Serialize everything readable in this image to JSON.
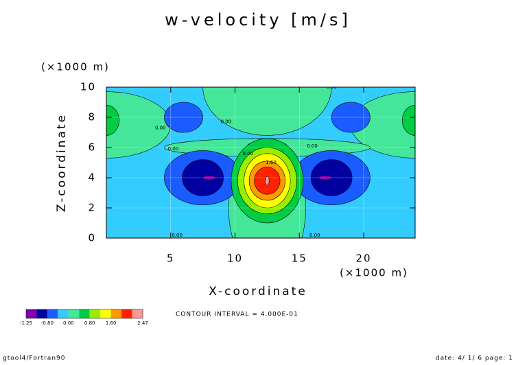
{
  "chart_data": {
    "type": "contour",
    "title": "w-velocity [m/s]",
    "y_unit": "(×1000 m)",
    "x_unit": "(×1000 m)",
    "xlabel": "X-coordinate",
    "ylabel": "Z-coordinate",
    "xlim": [
      0,
      24
    ],
    "ylim": [
      0,
      10
    ],
    "xticks": [
      5,
      10,
      15,
      20
    ],
    "yticks": [
      0,
      2,
      4,
      6,
      8,
      10
    ],
    "grid": true,
    "background_value": -0.2,
    "regions": [
      {
        "x": 12.5,
        "y": 10,
        "rx": 5,
        "ry": 3.2,
        "value": 0.2
      },
      {
        "x": 0,
        "y": 7.5,
        "rx": 5,
        "ry": 2.2,
        "value": 0.2
      },
      {
        "x": 24,
        "y": 7.5,
        "rx": 5,
        "ry": 2.2,
        "value": 0.2
      },
      {
        "x": 12.5,
        "y": 6,
        "rx": 8,
        "ry": 0.6,
        "value": 0.2
      },
      {
        "x": 12.5,
        "y": 2,
        "rx": 3,
        "ry": 4.5,
        "value": 0.2
      },
      {
        "x": 0,
        "y": 7.8,
        "rx": 1,
        "ry": 1,
        "value": 0.6
      },
      {
        "x": 24,
        "y": 7.8,
        "rx": 1,
        "ry": 1,
        "value": 0.6
      },
      {
        "x": 6,
        "y": 8,
        "rx": 1.5,
        "ry": 1,
        "value": -0.6
      },
      {
        "x": 19,
        "y": 8,
        "rx": 1.5,
        "ry": 1,
        "value": -0.6
      },
      {
        "x": 12.5,
        "y": 6.15,
        "rx": 1.5,
        "ry": 0.25,
        "value": -0.6
      },
      {
        "x": 7.5,
        "y": 4,
        "rx": 3,
        "ry": 1.8,
        "value": -0.6
      },
      {
        "x": 7.5,
        "y": 4,
        "rx": 1.6,
        "ry": 1.2,
        "value": -1.0
      },
      {
        "x": 8,
        "y": 4,
        "rx": 0.5,
        "ry": 0.15,
        "value": -1.22
      },
      {
        "x": 17.5,
        "y": 4,
        "rx": 3,
        "ry": 1.8,
        "value": -0.6
      },
      {
        "x": 17.5,
        "y": 4,
        "rx": 1.6,
        "ry": 1.2,
        "value": -1.0
      },
      {
        "x": 17,
        "y": 4,
        "rx": 0.5,
        "ry": 0.15,
        "value": -1.22
      },
      {
        "x": 12.5,
        "y": 3.8,
        "rx": 2.8,
        "ry": 2.8,
        "value": 0.6
      },
      {
        "x": 12.5,
        "y": 3.8,
        "rx": 2.3,
        "ry": 2.2,
        "value": 1.0
      },
      {
        "x": 12.5,
        "y": 3.8,
        "rx": 1.8,
        "ry": 1.8,
        "value": 1.4
      },
      {
        "x": 12.5,
        "y": 3.8,
        "rx": 1.4,
        "ry": 1.3,
        "value": 1.8
      },
      {
        "x": 12.5,
        "y": 3.8,
        "rx": 1.0,
        "ry": 0.9,
        "value": 2.2
      },
      {
        "x": 12.5,
        "y": 3.8,
        "rx": 0.15,
        "ry": 0.3,
        "value": 2.45
      }
    ],
    "contour_labels": [
      {
        "x": 4.2,
        "y": 7.3,
        "value": 0,
        "label": "0.00"
      },
      {
        "x": 9.3,
        "y": 7.7,
        "value": 0,
        "label": "0.00"
      },
      {
        "x": 5.2,
        "y": 5.9,
        "value": 0,
        "label": "0.00"
      },
      {
        "x": 16,
        "y": 6.1,
        "value": 0,
        "label": "0.00"
      },
      {
        "x": 17.5,
        "y": 10,
        "value": 0,
        "label": "0.00"
      },
      {
        "x": 11,
        "y": 5.6,
        "value": 0,
        "label": "0.00"
      },
      {
        "x": 12.8,
        "y": 5,
        "value": 1.6,
        "label": "1.60"
      },
      {
        "x": 5.5,
        "y": 0,
        "value": 0,
        "label": "0.00"
      },
      {
        "x": 16.2,
        "y": 0,
        "value": 0,
        "label": "0.00"
      }
    ],
    "colorbar": {
      "bounds": [
        -1.25,
        -1.2,
        -0.8,
        -0.4,
        0,
        0.4,
        0.8,
        1.2,
        1.6,
        2.0,
        2.4,
        2.47
      ],
      "colors": [
        "#8000b0",
        "#0000a0",
        "#1a5cff",
        "#33ccff",
        "#44e699",
        "#00cc44",
        "#99ee00",
        "#ffff00",
        "#ff9900",
        "#ff2200",
        "#ff9999"
      ],
      "ticks": [
        -1.25,
        {
          "value": -0.8,
          "label": "-0.80"
        },
        {
          "value": 0,
          "label": "0.00"
        },
        {
          "value": 0.8,
          "label": "0.80"
        },
        {
          "value": 1.6,
          "label": "1.60"
        },
        2.47
      ]
    },
    "note": "CONTOUR INTERVAL = 4.000E-01",
    "footer_left": "gtool4/Fortran90",
    "footer_right": "date: 4/ 1/ 6 page: 1"
  }
}
